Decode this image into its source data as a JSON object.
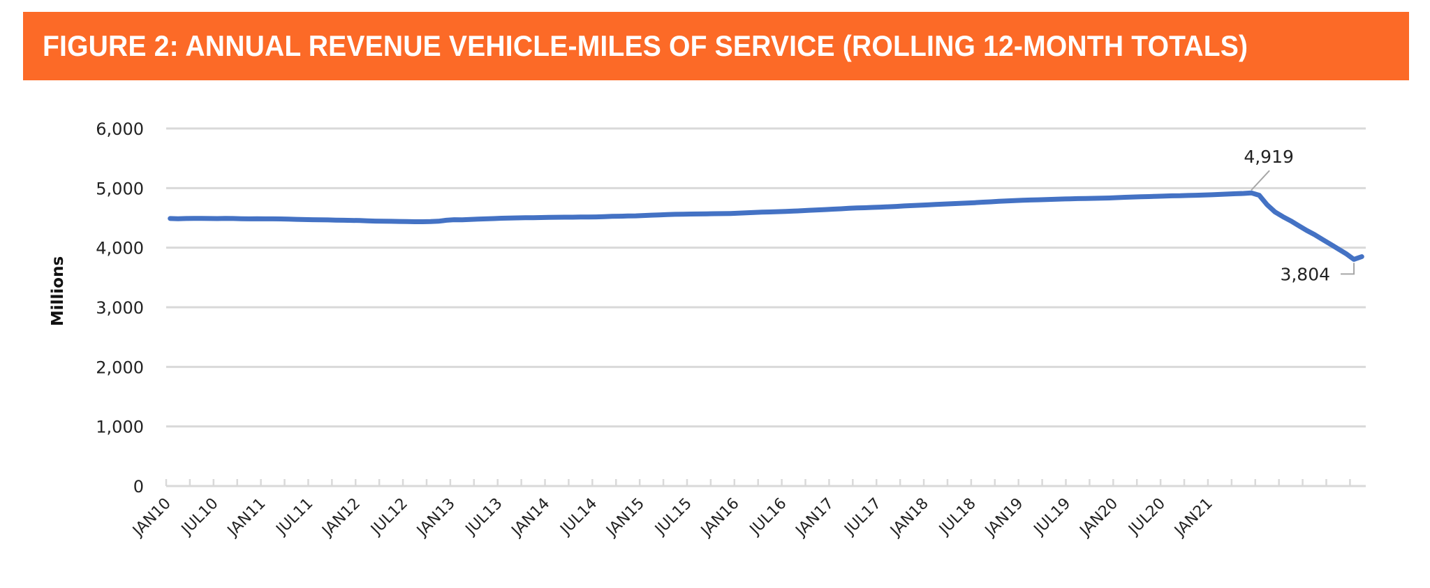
{
  "banner": {
    "title": "FIGURE 2:  ANNUAL REVENUE VEHICLE-MILES OF SERVICE (ROLLING 12-MONTH TOTALS)",
    "color": "#FC6A27"
  },
  "chart_data": {
    "type": "line",
    "title": "FIGURE 2:  ANNUAL REVENUE VEHICLE-MILES OF SERVICE (ROLLING 12-MONTH TOTALS)",
    "xlabel": "",
    "ylabel": "Millions",
    "ylim": [
      0,
      6000
    ],
    "yticks": [
      0,
      1000,
      2000,
      3000,
      4000,
      5000,
      6000
    ],
    "ytick_labels": [
      "0",
      "1,000",
      "2,000",
      "3,000",
      "4,000",
      "5,000",
      "6,000"
    ],
    "grid": true,
    "legend": "none",
    "x_start": "JAN10",
    "x_end": "APR21",
    "x_tick_labels": [
      "JAN10",
      "JUL10",
      "JAN11",
      "JUL11",
      "JAN12",
      "JUL12",
      "JAN13",
      "JUL13",
      "JAN14",
      "JUL14",
      "JAN15",
      "JUL15",
      "JAN16",
      "JUL16",
      "JAN17",
      "JUL17",
      "JAN18",
      "JUL18",
      "JAN19",
      "JUL19",
      "JAN20",
      "JUL20",
      "JAN21"
    ],
    "series": [
      {
        "name": "Annual Revenue Vehicle-Miles (Millions)",
        "color": "#4472C4",
        "values": [
          4490,
          4485,
          4490,
          4492,
          4492,
          4490,
          4488,
          4492,
          4490,
          4486,
          4484,
          4486,
          4484,
          4484,
          4482,
          4480,
          4475,
          4472,
          4470,
          4468,
          4466,
          4462,
          4460,
          4458,
          4456,
          4450,
          4446,
          4444,
          4442,
          4440,
          4438,
          4436,
          4436,
          4438,
          4444,
          4460,
          4470,
          4468,
          4474,
          4480,
          4484,
          4488,
          4494,
          4498,
          4500,
          4502,
          4504,
          4506,
          4508,
          4510,
          4512,
          4512,
          4514,
          4514,
          4516,
          4520,
          4526,
          4528,
          4532,
          4534,
          4540,
          4546,
          4550,
          4556,
          4560,
          4562,
          4564,
          4566,
          4568,
          4570,
          4572,
          4574,
          4578,
          4584,
          4590,
          4596,
          4600,
          4604,
          4608,
          4614,
          4620,
          4628,
          4634,
          4640,
          4646,
          4652,
          4660,
          4666,
          4670,
          4676,
          4680,
          4686,
          4692,
          4700,
          4706,
          4712,
          4718,
          4726,
          4732,
          4738,
          4742,
          4748,
          4756,
          4764,
          4770,
          4778,
          4784,
          4790,
          4796,
          4800,
          4804,
          4808,
          4812,
          4816,
          4820,
          4824,
          4826,
          4828,
          4830,
          4834,
          4840,
          4846,
          4850,
          4854,
          4858,
          4862,
          4866,
          4870,
          4872,
          4876,
          4880,
          4884,
          4888,
          4894,
          4900,
          4906,
          4910,
          4919,
          4880,
          4720,
          4600,
          4520,
          4450,
          4370,
          4290,
          4220,
          4140,
          4060,
          3980,
          3900,
          3804,
          3850
        ]
      }
    ],
    "annotations": [
      {
        "label": "4,919",
        "x": "FEB20",
        "value": 4919
      },
      {
        "label": "3,804",
        "x": "MAR21",
        "value": 3804
      }
    ]
  }
}
